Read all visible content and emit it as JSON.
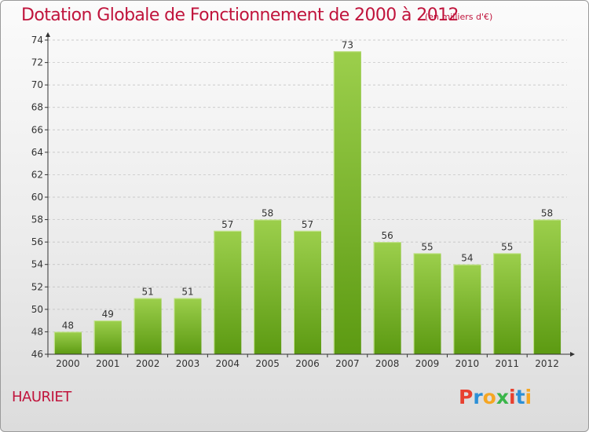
{
  "header": {
    "title": "Dotation Globale de Fonctionnement de 2000 à 2012",
    "subtitle": "(en milliers d'€)"
  },
  "footer": {
    "commune": "HAURIET",
    "brand": "Proxiti",
    "brand_colors": [
      "#e8412f",
      "#2c8fd6",
      "#f5a623",
      "#3ab54a",
      "#e8412f",
      "#2c8fd6",
      "#f5a623"
    ]
  },
  "colors": {
    "title": "#c0143c",
    "bar_top": "#9ccf4c",
    "bar_bottom": "#5c9a12",
    "axis": "#333333",
    "grid": "#bdbdbd"
  },
  "chart_data": {
    "type": "bar",
    "categories": [
      "2000",
      "2001",
      "2002",
      "2003",
      "2004",
      "2005",
      "2006",
      "2007",
      "2008",
      "2009",
      "2010",
      "2011",
      "2012"
    ],
    "values": [
      48,
      49,
      51,
      51,
      57,
      58,
      57,
      73,
      56,
      55,
      54,
      55,
      58
    ],
    "ylim": [
      46,
      74
    ],
    "yticks": [
      46,
      48,
      50,
      52,
      54,
      56,
      58,
      60,
      62,
      64,
      66,
      68,
      70,
      72,
      74
    ],
    "grid": true,
    "data_labels": true
  }
}
